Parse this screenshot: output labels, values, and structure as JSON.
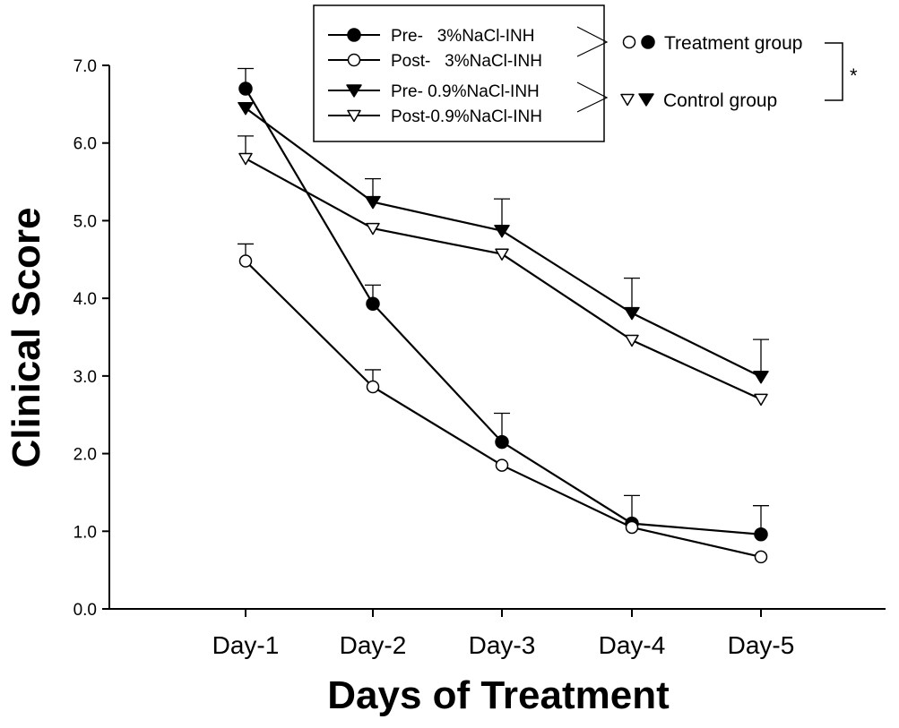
{
  "chart_data": {
    "type": "line",
    "xlabel": "Days of Treatment",
    "ylabel": "Clinical Score",
    "categories": [
      "Day-1",
      "Day-2",
      "Day-3",
      "Day-4",
      "Day-5"
    ],
    "ylim": [
      0,
      7
    ],
    "yticks": [
      "0.0",
      "1.0",
      "2.0",
      "3.0",
      "4.0",
      "5.0",
      "6.0",
      "7.0"
    ],
    "grid": false,
    "legend_position": "top-right",
    "series": [
      {
        "name": "Pre-   3%NaCl-INH",
        "marker": "circle-filled",
        "values": [
          6.7,
          3.93,
          2.15,
          1.1,
          0.96
        ],
        "errors": [
          0.26,
          0.24,
          0.37,
          0.36,
          0.37
        ]
      },
      {
        "name": "Post-   3%NaCl-INH",
        "marker": "circle-open",
        "values": [
          4.48,
          2.86,
          1.85,
          1.05,
          0.67
        ],
        "errors": [
          0.22,
          0.22,
          0.0,
          0.0,
          0.0
        ]
      },
      {
        "name": "Pre- 0.9%NaCl-INH",
        "marker": "triangle-down-filled",
        "values": [
          6.45,
          5.24,
          4.87,
          3.81,
          2.99
        ],
        "errors": [
          0.0,
          0.3,
          0.41,
          0.45,
          0.48
        ]
      },
      {
        "name": "Post-0.9%NaCl-INH",
        "marker": "triangle-down-open",
        "values": [
          5.8,
          4.9,
          4.57,
          3.46,
          2.7
        ],
        "errors": [
          0.29,
          0.0,
          0.0,
          0.0,
          0.0
        ]
      }
    ],
    "group_labels": {
      "treatment": "Treatment group",
      "control": "Control group"
    },
    "significance": "*"
  }
}
